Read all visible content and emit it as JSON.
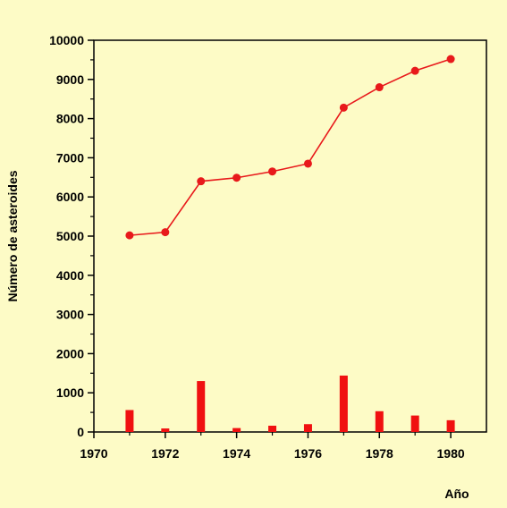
{
  "chart_data": {
    "type": "line",
    "title": "",
    "xlabel": "Año",
    "ylabel": "Número de asteroides",
    "xlim": [
      1970,
      1981
    ],
    "ylim": [
      0,
      10000
    ],
    "x_ticks": [
      "1970",
      "1972",
      "1974",
      "1976",
      "1978",
      "1980"
    ],
    "y_ticks": [
      "0",
      "1000",
      "2000",
      "3000",
      "4000",
      "5000",
      "6000",
      "7000",
      "8000",
      "9000",
      "10000"
    ],
    "grid": false,
    "legend": "none",
    "series": [
      {
        "kind": "line",
        "color": "#e8191b",
        "x": [
          1971,
          1972,
          1973,
          1974,
          1975,
          1976,
          1977,
          1978,
          1979,
          1980
        ],
        "values": [
          5020,
          5100,
          6400,
          6490,
          6650,
          6850,
          8280,
          8800,
          9220,
          9520
        ]
      },
      {
        "kind": "bar",
        "color": "#f01010",
        "x": [
          1971,
          1972,
          1973,
          1974,
          1975,
          1976,
          1977,
          1978,
          1979,
          1980
        ],
        "values": [
          560,
          90,
          1300,
          100,
          160,
          200,
          1440,
          530,
          420,
          300
        ]
      }
    ]
  }
}
